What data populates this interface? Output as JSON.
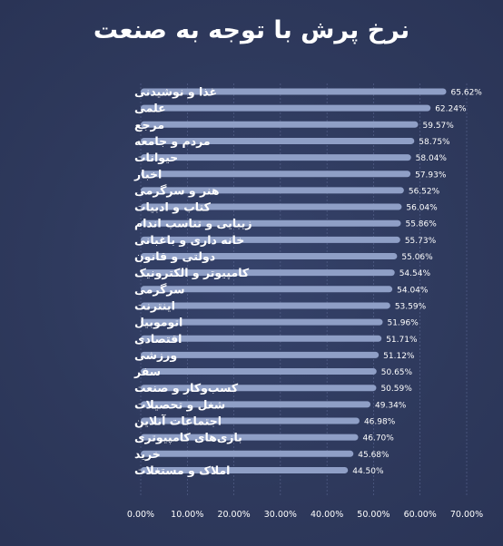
{
  "chart_data": {
    "type": "bar",
    "orientation": "horizontal",
    "title": "نرخ پرش با توجه به صنعت",
    "xlabel": "",
    "ylabel": "",
    "xlim": [
      0,
      70
    ],
    "x_ticks": [
      "0.00%",
      "10.00%",
      "20.00%",
      "30.00%",
      "40.00%",
      "50.00%",
      "60.00%",
      "70.00%"
    ],
    "grid": true,
    "bar_color": "#8f9fc6",
    "categories": [
      "غذا و نوشیدنی",
      "علمی",
      "مرجع",
      "مردم و جامعه",
      "حیوانات",
      "اخبار",
      "هنر و سرگرمی",
      "کتاب و ادبیات",
      "زیبایی و تناسب اندام",
      "خانه داری و باغبانی",
      "دولتی و قانون",
      "کامپیوتر و الکترونیک",
      "سرگرمی",
      "اینترنت",
      "اتوموبیل",
      "اقتصادی",
      "ورزشی",
      "سفر",
      "کسب‌وکار و صنعت",
      "شغل و تحصیلات",
      "اجتماعات آنلاین",
      "بازی‌های کامپیوتری",
      "خرید",
      "املاک و مستغلات"
    ],
    "values": [
      65.62,
      62.24,
      59.57,
      58.75,
      58.04,
      57.93,
      56.52,
      56.04,
      55.86,
      55.73,
      55.06,
      54.54,
      54.04,
      53.59,
      51.96,
      51.71,
      51.12,
      50.65,
      50.59,
      49.34,
      46.98,
      46.7,
      45.68,
      44.5
    ],
    "value_labels": [
      "65.62%",
      "62.24%",
      "59.57%",
      "58.75%",
      "58.04%",
      "57.93%",
      "56.52%",
      "56.04%",
      "55.86%",
      "55.73%",
      "55.06%",
      "54.54%",
      "54.04%",
      "53.59%",
      "51.96%",
      "51.71%",
      "51.12%",
      "50.65%",
      "50.59%",
      "49.34%",
      "46.98%",
      "46.70%",
      "45.68%",
      "44.50%"
    ]
  }
}
